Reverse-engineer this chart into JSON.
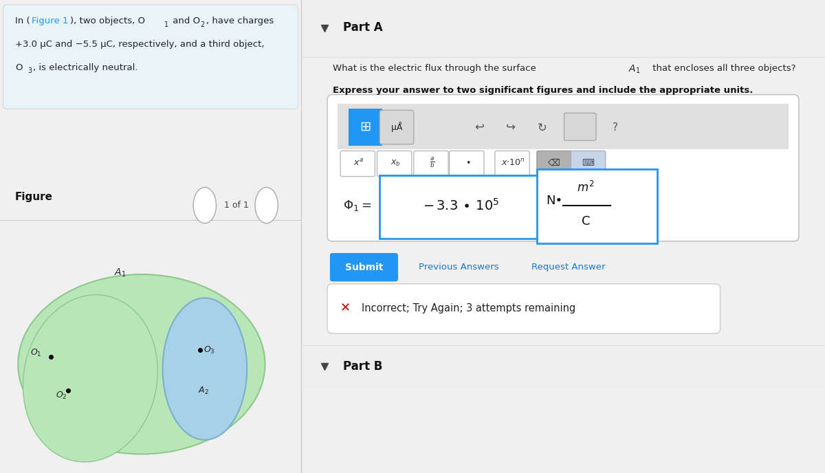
{
  "bg_color": "#f0f0f0",
  "left_panel_bg": "#e8f4f8",
  "left_panel_border": "#cccccc",
  "figure_link": "Figure 1",
  "figure_link_color": "#2196F3",
  "figure_label": "Figure",
  "nav_text": "1 of 1",
  "part_a_label": "Part A",
  "bold_instruction": "Express your answer to two significant figures and include the appropriate units.",
  "submit_btn_color": "#2196F3",
  "submit_btn_text": "Submit",
  "prev_answers_text": "Previous Answers",
  "request_answer_text": "Request Answer",
  "link_color": "#1976D2",
  "incorrect_text": "Incorrect; Try Again; 3 attempts remaining",
  "incorrect_color": "#cc0000",
  "part_b_label": "Part B",
  "green_blob_color": "#b8e6b8",
  "green_blob_outline": "#8dc88d",
  "blue_blob_color": "#a8d0e8",
  "blue_blob_outline": "#7ab0cc",
  "right_panel_bg": "#f8f8f8",
  "input_border_color": "#2196F3",
  "answer_box_border": "#2196F3"
}
